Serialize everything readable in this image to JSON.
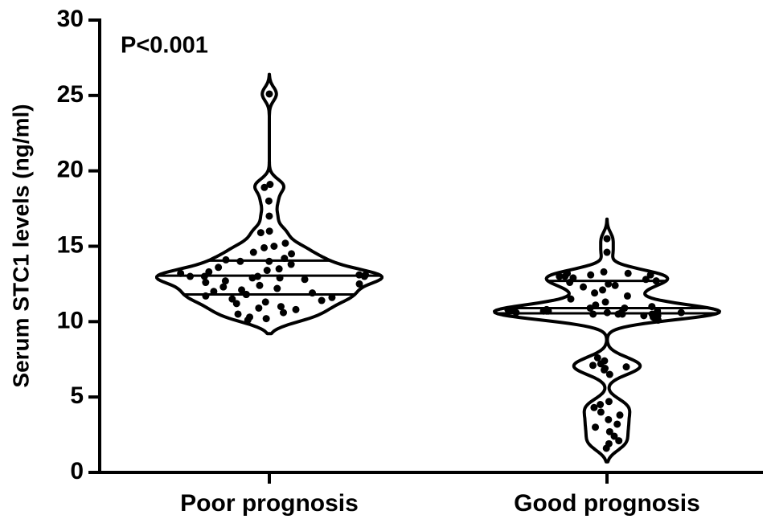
{
  "chart_data": {
    "type": "violin",
    "ylabel": "Serum STC1 levels (ng/ml)",
    "annotation": "P<0.001",
    "categories": [
      "Poor prognosis",
      "Good prognosis"
    ],
    "ylim": [
      0,
      30
    ],
    "yticks": [
      0,
      5,
      10,
      15,
      20,
      25,
      30
    ],
    "color": "#000000",
    "series": [
      {
        "name": "Poor prognosis",
        "median": 13.05,
        "q1": 11.8,
        "q3": 14.05,
        "values": [
          25.1,
          19.1,
          18.9,
          18.0,
          17.0,
          16.0,
          15.9,
          15.2,
          15.0,
          14.9,
          14.6,
          14.5,
          14.2,
          14.1,
          14.0,
          14.0,
          13.8,
          13.6,
          13.5,
          13.4,
          13.3,
          13.2,
          13.1,
          13.1,
          13.0,
          13.0,
          13.0,
          13.0,
          12.9,
          12.9,
          12.8,
          12.7,
          12.6,
          12.5,
          12.4,
          12.3,
          12.2,
          12.1,
          12.0,
          11.9,
          11.8,
          11.8,
          11.7,
          11.6,
          11.5,
          11.4,
          11.3,
          11.2,
          11.0,
          10.9,
          10.8,
          10.6,
          10.5,
          10.3,
          10.2,
          10.1
        ]
      },
      {
        "name": "Good prognosis",
        "median": 10.9,
        "q1": 10.55,
        "q3": 12.7,
        "values": [
          15.5,
          14.6,
          13.3,
          13.2,
          13.2,
          13.1,
          13.1,
          13.0,
          13.0,
          12.9,
          12.8,
          12.7,
          12.6,
          12.5,
          12.4,
          12.3,
          12.1,
          11.9,
          11.7,
          11.5,
          11.3,
          11.1,
          11.0,
          10.9,
          10.9,
          10.8,
          10.8,
          10.8,
          10.7,
          10.7,
          10.7,
          10.7,
          10.6,
          10.6,
          10.6,
          10.6,
          10.5,
          10.5,
          10.5,
          10.5,
          10.4,
          10.4,
          10.3,
          10.2,
          10.1,
          7.6,
          7.4,
          7.2,
          7.1,
          7.0,
          6.9,
          6.8,
          6.5,
          4.7,
          4.5,
          4.3,
          4.0,
          3.8,
          3.5,
          3.2,
          3.0,
          2.7,
          2.4,
          2.1,
          1.9,
          1.6
        ]
      }
    ]
  }
}
